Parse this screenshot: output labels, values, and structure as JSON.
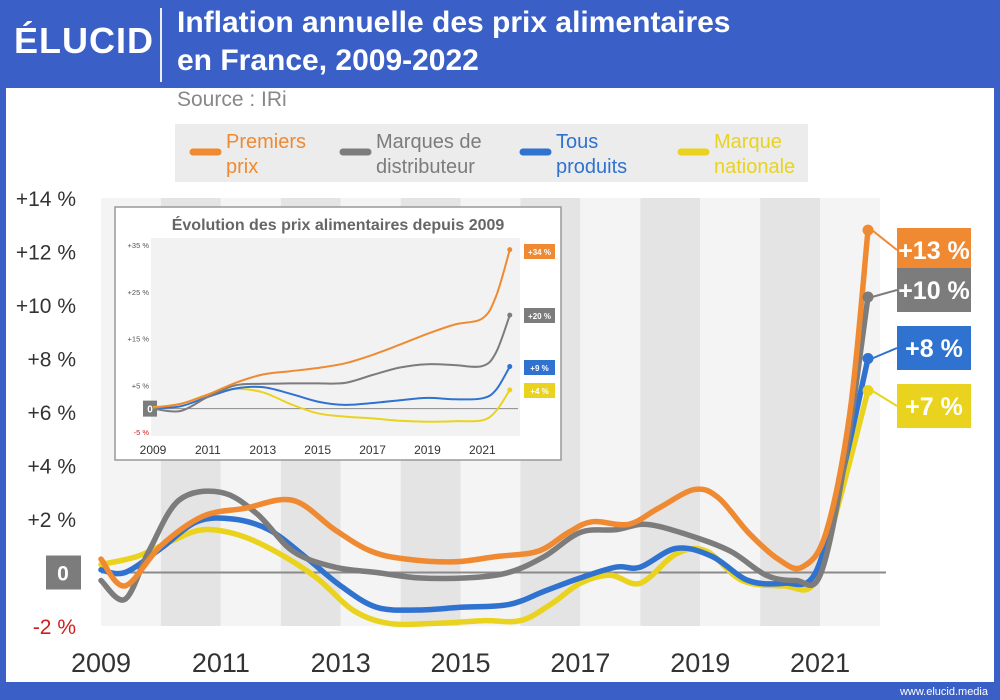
{
  "header": {
    "logo": "ÉLUCID",
    "title_line1": "Inflation annuelle des prix alimentaires",
    "title_line2": "en France, 2009-2022",
    "source": "Source : IRi"
  },
  "footer": {
    "site": "www.elucid.media"
  },
  "colors": {
    "premiers_prix": "#ef8a32",
    "mdd": "#7c7c7c",
    "tous": "#2f72cf",
    "nationale": "#e9d31e",
    "background_blue": "#3a5fc7",
    "negative_label": "#d11c1c"
  },
  "chart_data": [
    {
      "type": "line",
      "title": "",
      "xlabel": "",
      "ylabel": "",
      "xlim": [
        2009.0,
        2022.1
      ],
      "ylim": [
        -2,
        14
      ],
      "grid": true,
      "legend_position": "top",
      "x_ticks": [
        "2009",
        "2011",
        "2013",
        "2015",
        "2017",
        "2019",
        "2021"
      ],
      "y_ticks": [
        "-2 %",
        "0",
        "+2 %",
        "+4 %",
        "+6 %",
        "+8 %",
        "+10 %",
        "+12 %",
        "+14 %"
      ],
      "end_labels": [
        "+13 %",
        "+10 %",
        "+8 %",
        "+7 %"
      ],
      "series": [
        {
          "name": "Premiers prix",
          "legend_lines": [
            "Premiers",
            "prix"
          ],
          "color": "#ef8a32",
          "points": [
            [
              2009.0,
              0.5
            ],
            [
              2009.4,
              -0.5
            ],
            [
              2010.0,
              1.0
            ],
            [
              2010.7,
              2.1
            ],
            [
              2011.4,
              2.4
            ],
            [
              2012.2,
              2.7
            ],
            [
              2012.9,
              1.6
            ],
            [
              2013.5,
              0.8
            ],
            [
              2014.1,
              0.5
            ],
            [
              2014.9,
              0.4
            ],
            [
              2015.6,
              0.6
            ],
            [
              2016.3,
              0.8
            ],
            [
              2016.8,
              1.5
            ],
            [
              2017.2,
              1.9
            ],
            [
              2017.8,
              1.8
            ],
            [
              2018.3,
              2.4
            ],
            [
              2018.9,
              3.1
            ],
            [
              2019.3,
              2.8
            ],
            [
              2019.8,
              1.5
            ],
            [
              2020.3,
              0.5
            ],
            [
              2020.7,
              0.2
            ],
            [
              2021.1,
              1.5
            ],
            [
              2021.5,
              6.0
            ],
            [
              2021.8,
              12.8
            ]
          ]
        },
        {
          "name": "Marques de distributeur",
          "legend_lines": [
            "Marques de",
            "distributeur"
          ],
          "color": "#7c7c7c",
          "points": [
            [
              2009.0,
              -0.3
            ],
            [
              2009.4,
              -1.0
            ],
            [
              2009.8,
              0.8
            ],
            [
              2010.3,
              2.7
            ],
            [
              2011.0,
              3.0
            ],
            [
              2011.6,
              2.2
            ],
            [
              2012.2,
              0.8
            ],
            [
              2012.9,
              0.2
            ],
            [
              2013.6,
              0.0
            ],
            [
              2014.3,
              -0.2
            ],
            [
              2015.1,
              -0.2
            ],
            [
              2015.8,
              0.0
            ],
            [
              2016.4,
              0.6
            ],
            [
              2017.0,
              1.5
            ],
            [
              2017.6,
              1.6
            ],
            [
              2018.1,
              1.8
            ],
            [
              2018.8,
              1.4
            ],
            [
              2019.5,
              0.8
            ],
            [
              2020.1,
              -0.1
            ],
            [
              2020.6,
              -0.3
            ],
            [
              2021.0,
              -0.1
            ],
            [
              2021.4,
              4.0
            ],
            [
              2021.8,
              10.3
            ]
          ]
        },
        {
          "name": "Tous produits",
          "legend_lines": [
            "Tous",
            "produits"
          ],
          "color": "#2f72cf",
          "points": [
            [
              2009.0,
              0.1
            ],
            [
              2009.4,
              0.0
            ],
            [
              2010.0,
              0.9
            ],
            [
              2010.6,
              1.9
            ],
            [
              2011.2,
              2.0
            ],
            [
              2011.8,
              1.6
            ],
            [
              2012.4,
              0.6
            ],
            [
              2013.0,
              -0.5
            ],
            [
              2013.6,
              -1.3
            ],
            [
              2014.3,
              -1.4
            ],
            [
              2015.0,
              -1.3
            ],
            [
              2015.8,
              -1.2
            ],
            [
              2016.4,
              -0.7
            ],
            [
              2017.0,
              -0.2
            ],
            [
              2017.6,
              0.2
            ],
            [
              2018.0,
              0.2
            ],
            [
              2018.6,
              0.9
            ],
            [
              2019.2,
              0.6
            ],
            [
              2019.8,
              -0.3
            ],
            [
              2020.4,
              -0.4
            ],
            [
              2020.9,
              -0.1
            ],
            [
              2021.3,
              3.0
            ],
            [
              2021.8,
              8.0
            ]
          ]
        },
        {
          "name": "Marque nationale",
          "legend_lines": [
            "Marque",
            "nationale"
          ],
          "color": "#e9d31e",
          "points": [
            [
              2009.0,
              0.3
            ],
            [
              2009.6,
              0.6
            ],
            [
              2010.2,
              1.2
            ],
            [
              2010.7,
              1.6
            ],
            [
              2011.3,
              1.4
            ],
            [
              2011.9,
              0.8
            ],
            [
              2012.6,
              -0.2
            ],
            [
              2013.2,
              -1.4
            ],
            [
              2013.8,
              -1.9
            ],
            [
              2014.6,
              -1.9
            ],
            [
              2015.4,
              -1.8
            ],
            [
              2016.0,
              -1.8
            ],
            [
              2016.5,
              -1.2
            ],
            [
              2017.0,
              -0.4
            ],
            [
              2017.5,
              -0.1
            ],
            [
              2018.0,
              -0.4
            ],
            [
              2018.6,
              0.7
            ],
            [
              2019.1,
              0.8
            ],
            [
              2019.7,
              -0.3
            ],
            [
              2020.4,
              -0.5
            ],
            [
              2020.9,
              -0.4
            ],
            [
              2021.3,
              2.5
            ],
            [
              2021.8,
              6.8
            ]
          ]
        }
      ]
    },
    {
      "type": "line",
      "title": "Évolution des prix alimentaires depuis 2009",
      "xlabel": "",
      "ylabel": "",
      "xlim": [
        2009.0,
        2022.3
      ],
      "ylim": [
        -5,
        35
      ],
      "grid": false,
      "legend_position": "none",
      "x_ticks": [
        "2009",
        "2011",
        "2013",
        "2015",
        "2017",
        "2019",
        "2021"
      ],
      "y_ticks": [
        "-5 %",
        "0",
        "+5 %",
        "+15 %",
        "+25 %",
        "+35 %"
      ],
      "end_labels": [
        "+34 %",
        "+20 %",
        "+9 %",
        "+4 %"
      ],
      "series": [
        {
          "color": "#ef8a32",
          "points": [
            [
              2009.0,
              0.2
            ],
            [
              2010.0,
              1.0
            ],
            [
              2011.0,
              3.0
            ],
            [
              2012.0,
              5.5
            ],
            [
              2013.0,
              7.3
            ],
            [
              2014.0,
              8.0
            ],
            [
              2015.0,
              8.7
            ],
            [
              2016.0,
              9.7
            ],
            [
              2017.0,
              11.5
            ],
            [
              2018.0,
              13.7
            ],
            [
              2019.0,
              16.0
            ],
            [
              2020.0,
              18.0
            ],
            [
              2021.0,
              19.3
            ],
            [
              2021.5,
              24.0
            ],
            [
              2022.0,
              34.0
            ]
          ]
        },
        {
          "color": "#7c7c7c",
          "points": [
            [
              2009.0,
              0.0
            ],
            [
              2010.0,
              -0.5
            ],
            [
              2011.0,
              2.5
            ],
            [
              2012.0,
              5.0
            ],
            [
              2013.0,
              5.3
            ],
            [
              2014.0,
              5.4
            ],
            [
              2015.0,
              5.4
            ],
            [
              2016.0,
              5.5
            ],
            [
              2017.0,
              7.2
            ],
            [
              2018.0,
              8.8
            ],
            [
              2019.0,
              9.5
            ],
            [
              2020.0,
              9.3
            ],
            [
              2021.0,
              9.1
            ],
            [
              2021.5,
              12.0
            ],
            [
              2022.0,
              20.0
            ]
          ]
        },
        {
          "color": "#2f72cf",
          "points": [
            [
              2009.0,
              0.1
            ],
            [
              2010.0,
              0.5
            ],
            [
              2011.0,
              2.5
            ],
            [
              2012.0,
              4.3
            ],
            [
              2013.0,
              4.6
            ],
            [
              2014.0,
              3.2
            ],
            [
              2015.0,
              1.5
            ],
            [
              2016.0,
              0.8
            ],
            [
              2017.0,
              1.2
            ],
            [
              2018.0,
              1.8
            ],
            [
              2019.0,
              2.3
            ],
            [
              2020.0,
              2.0
            ],
            [
              2021.0,
              2.2
            ],
            [
              2021.5,
              4.0
            ],
            [
              2022.0,
              9.0
            ]
          ]
        },
        {
          "color": "#e9d31e",
          "points": [
            [
              2009.0,
              0.3
            ],
            [
              2010.0,
              1.0
            ],
            [
              2011.0,
              3.0
            ],
            [
              2012.0,
              4.2
            ],
            [
              2013.0,
              3.5
            ],
            [
              2014.0,
              1.0
            ],
            [
              2015.0,
              -1.0
            ],
            [
              2016.0,
              -1.7
            ],
            [
              2017.0,
              -2.1
            ],
            [
              2018.0,
              -2.6
            ],
            [
              2019.0,
              -2.8
            ],
            [
              2020.0,
              -2.7
            ],
            [
              2021.0,
              -2.5
            ],
            [
              2021.5,
              -0.5
            ],
            [
              2022.0,
              4.0
            ]
          ]
        }
      ]
    }
  ]
}
